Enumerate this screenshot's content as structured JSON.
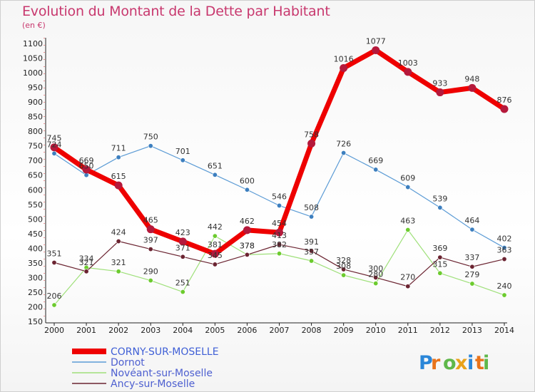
{
  "header": {
    "title": "Evolution du Montant de la Dette par Habitant",
    "subtitle": "(en €)"
  },
  "logo": {
    "text": "Proxiti"
  },
  "chart_data": {
    "type": "line",
    "title": "Evolution du Montant de la Dette par Habitant",
    "ylabel": "(en €)",
    "xlabel": "",
    "x": [
      "2000",
      "2001",
      "2002",
      "2003",
      "2004",
      "2005",
      "2006",
      "2007",
      "2008",
      "2009",
      "2010",
      "2011",
      "2012",
      "2013",
      "2014"
    ],
    "ylim": [
      150,
      1100
    ],
    "yticks": [
      150,
      200,
      250,
      300,
      350,
      400,
      450,
      500,
      550,
      600,
      650,
      700,
      750,
      800,
      850,
      900,
      950,
      1000,
      1050,
      1100
    ],
    "grid": false,
    "legend_position": "bottom-left",
    "series": [
      {
        "name": "CORNY-SUR-MOSELLE",
        "color": "#ee0000",
        "marker": "#b5193b",
        "width": 7,
        "values": [
          745,
          669,
          615,
          465,
          423,
          381,
          462,
          454,
          758,
          1016,
          1077,
          1003,
          933,
          948,
          876
        ]
      },
      {
        "name": "Dornot",
        "color": "#5b9bd5",
        "marker": "#3d7fbf",
        "width": 1.2,
        "values": [
          724,
          650,
          711,
          750,
          701,
          651,
          600,
          546,
          508,
          726,
          669,
          609,
          539,
          464,
          402
        ]
      },
      {
        "name": "Novéant-sur-Moselle",
        "color": "#9fe07a",
        "marker": "#6ccb2e",
        "width": 1.2,
        "values": [
          206,
          334,
          321,
          290,
          251,
          442,
          378,
          382,
          357,
          308,
          280,
          463,
          315,
          279,
          240
        ]
      },
      {
        "name": "Ancy-sur-Moselle",
        "color": "#6b2431",
        "marker": "#6b2431",
        "width": 1.2,
        "values": [
          351,
          321,
          424,
          397,
          371,
          345,
          378,
          413,
          391,
          328,
          300,
          270,
          369,
          337,
          363
        ]
      }
    ]
  }
}
